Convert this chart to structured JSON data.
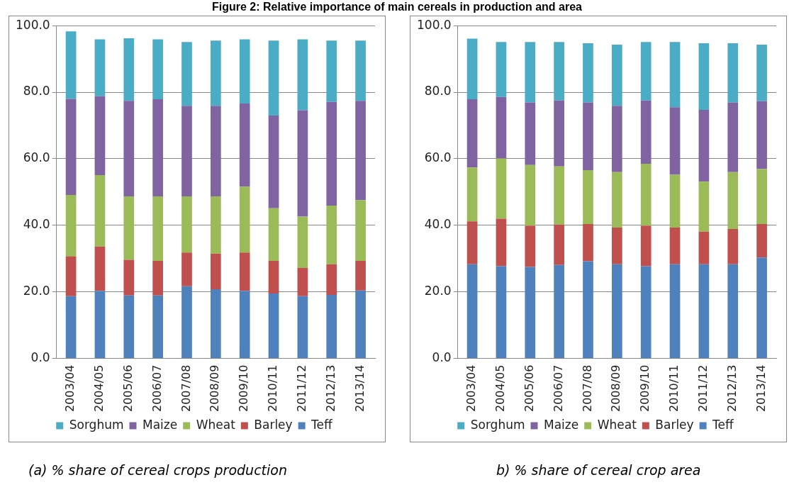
{
  "chart_data": [
    {
      "type": "bar",
      "title": "Figure 2: Relative importance of main cereals in production and area",
      "stacked": true,
      "categories": [
        "2003/04",
        "2004/05",
        "2005/06",
        "2006/07",
        "2007/08",
        "2008/09",
        "2009/10",
        "2010/11",
        "2011/12",
        "2012/13",
        "2013/14"
      ],
      "series": [
        {
          "name": "Teff",
          "color": "#4f81bd",
          "values": [
            18.7,
            20.3,
            18.9,
            18.9,
            21.7,
            20.8,
            20.3,
            19.5,
            18.7,
            19.1,
            20.4
          ]
        },
        {
          "name": "Barley",
          "color": "#c0504d",
          "values": [
            12.0,
            13.3,
            10.7,
            10.4,
            10.1,
            10.7,
            11.5,
            9.8,
            8.5,
            9.2,
            8.9
          ]
        },
        {
          "name": "Wheat",
          "color": "#9bbb59",
          "values": [
            18.4,
            21.5,
            19.1,
            19.4,
            16.9,
            17.2,
            19.8,
            15.8,
            15.4,
            17.6,
            18.3
          ]
        },
        {
          "name": "Maize",
          "color": "#8064a2",
          "values": [
            28.9,
            23.7,
            28.7,
            29.2,
            27.2,
            27.2,
            25.0,
            27.9,
            32.0,
            31.2,
            29.8
          ]
        },
        {
          "name": "Sorghum",
          "color": "#4bacc6",
          "values": [
            20.3,
            17.1,
            18.8,
            18.0,
            19.2,
            19.6,
            19.3,
            22.5,
            21.3,
            18.4,
            18.1
          ]
        }
      ],
      "ylim": [
        0,
        100
      ],
      "yticks": [
        {
          "value": 0,
          "label": "0.0"
        },
        {
          "value": 20,
          "label": "20.0"
        },
        {
          "value": 40,
          "label": "40.0"
        },
        {
          "value": 60,
          "label": "60.0"
        },
        {
          "value": 80,
          "label": "80.0"
        },
        {
          "value": 100,
          "label": "100.0"
        }
      ],
      "grid": "y",
      "legend": "bottom",
      "annotations": [
        "(a)  % share of cereal crops production"
      ]
    },
    {
      "type": "bar",
      "stacked": true,
      "categories": [
        "2003/04",
        "2004/05",
        "2005/06",
        "2006/07",
        "2007/08",
        "2008/09",
        "2009/10",
        "2010/11",
        "2011/12",
        "2012/13",
        "2013/14"
      ],
      "series": [
        {
          "name": "Teff",
          "color": "#4f81bd",
          "values": [
            28.3,
            27.7,
            27.5,
            28.1,
            29.2,
            28.3,
            27.7,
            28.3,
            28.3,
            28.3,
            30.3
          ]
        },
        {
          "name": "Barley",
          "color": "#c0504d",
          "values": [
            12.9,
            14.3,
            12.4,
            12.1,
            11.2,
            11.0,
            12.2,
            11.0,
            9.8,
            10.6,
            10.1
          ]
        },
        {
          "name": "Wheat",
          "color": "#9bbb59",
          "values": [
            16.2,
            18.1,
            18.2,
            17.5,
            16.2,
            16.7,
            18.6,
            15.9,
            15.0,
            17.1,
            16.5
          ]
        },
        {
          "name": "Maize",
          "color": "#8064a2",
          "values": [
            20.5,
            18.5,
            18.8,
            19.8,
            20.3,
            19.9,
            19.0,
            20.3,
            21.6,
            20.9,
            20.4
          ]
        },
        {
          "name": "Sorghum",
          "color": "#4bacc6",
          "values": [
            18.2,
            16.5,
            18.2,
            17.6,
            17.8,
            18.4,
            17.6,
            19.6,
            20.0,
            17.8,
            17.0
          ]
        }
      ],
      "ylim": [
        0,
        100
      ],
      "yticks": [
        {
          "value": 0,
          "label": "0.0"
        },
        {
          "value": 20,
          "label": "20.0"
        },
        {
          "value": 40,
          "label": "40.0"
        },
        {
          "value": 60,
          "label": "60.0"
        },
        {
          "value": 80,
          "label": "80.0"
        },
        {
          "value": 100,
          "label": "100.0"
        }
      ],
      "grid": "y",
      "legend": "bottom",
      "annotations": [
        "b) % share of cereal crop area"
      ]
    }
  ]
}
